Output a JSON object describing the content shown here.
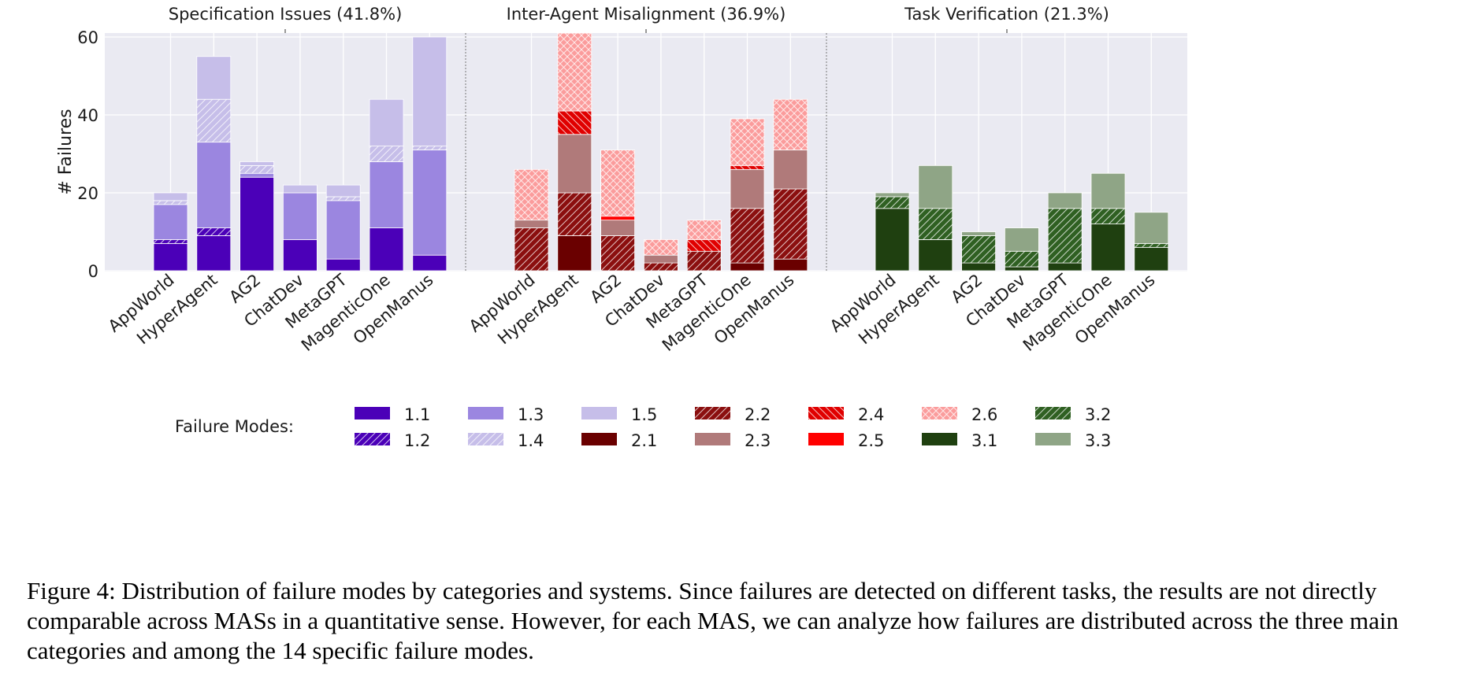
{
  "chart_data": {
    "type": "bar",
    "stacked": true,
    "ylabel": "# Failures",
    "ylim": [
      0,
      60
    ],
    "yticks": [
      0,
      20,
      40,
      60
    ],
    "grid": true,
    "systems": [
      "AppWorld",
      "HyperAgent",
      "AG2",
      "ChatDev",
      "MetaGPT",
      "MagenticOne",
      "OpenManus"
    ],
    "legend": {
      "title": "Failure Modes:",
      "position": "bottom",
      "entries": [
        {
          "label": "1.1",
          "color": "#4b00b8",
          "hatch": "none"
        },
        {
          "label": "1.2",
          "color": "#4b00b8",
          "hatch": "diag"
        },
        {
          "label": "1.3",
          "color": "#9b86e0",
          "hatch": "none"
        },
        {
          "label": "1.4",
          "color": "#c6bee9",
          "hatch": "diag"
        },
        {
          "label": "1.5",
          "color": "#c6bee9",
          "hatch": "none"
        },
        {
          "label": "2.1",
          "color": "#6a0000",
          "hatch": "none"
        },
        {
          "label": "2.2",
          "color": "#8b0f0f",
          "hatch": "diag"
        },
        {
          "label": "2.3",
          "color": "#b07a7a",
          "hatch": "none"
        },
        {
          "label": "2.4",
          "color": "#e00000",
          "hatch": "back"
        },
        {
          "label": "2.5",
          "color": "#ff0000",
          "hatch": "none"
        },
        {
          "label": "2.6",
          "color": "#fb9c9c",
          "hatch": "cross"
        },
        {
          "label": "3.1",
          "color": "#1f4010",
          "hatch": "none"
        },
        {
          "label": "3.2",
          "color": "#2f6022",
          "hatch": "diag"
        },
        {
          "label": "3.3",
          "color": "#8fa586",
          "hatch": "none"
        }
      ]
    },
    "panels": [
      {
        "title": "Specification Issues (41.8%)",
        "series": [
          {
            "name": "1.1",
            "values": [
              7,
              9,
              24,
              8,
              3,
              11,
              4
            ]
          },
          {
            "name": "1.2",
            "values": [
              1,
              2,
              0,
              0,
              0,
              0,
              0
            ]
          },
          {
            "name": "1.3",
            "values": [
              9,
              22,
              1,
              12,
              15,
              17,
              27
            ]
          },
          {
            "name": "1.4",
            "values": [
              1,
              11,
              2,
              0,
              1,
              4,
              1
            ]
          },
          {
            "name": "1.5",
            "values": [
              2,
              11,
              1,
              2,
              3,
              12,
              28
            ]
          }
        ]
      },
      {
        "title": "Inter-Agent Misalignment (36.9%)",
        "series": [
          {
            "name": "2.1",
            "values": [
              0,
              9,
              0,
              0,
              0,
              2,
              3
            ]
          },
          {
            "name": "2.2",
            "values": [
              11,
              11,
              9,
              2,
              5,
              14,
              18
            ]
          },
          {
            "name": "2.3",
            "values": [
              2,
              15,
              4,
              2,
              0,
              10,
              10
            ]
          },
          {
            "name": "2.4",
            "values": [
              0,
              6,
              0,
              0,
              3,
              1,
              0
            ]
          },
          {
            "name": "2.5",
            "values": [
              0,
              0,
              1,
              0,
              0,
              0,
              0
            ]
          },
          {
            "name": "2.6",
            "values": [
              13,
              20,
              17,
              4,
              5,
              12,
              13
            ]
          }
        ]
      },
      {
        "title": "Task Verification (21.3%)",
        "series": [
          {
            "name": "3.1",
            "values": [
              16,
              8,
              2,
              1,
              2,
              12,
              6
            ]
          },
          {
            "name": "3.2",
            "values": [
              3,
              8,
              7,
              4,
              14,
              4,
              1
            ]
          },
          {
            "name": "3.3",
            "values": [
              1,
              11,
              1,
              6,
              4,
              9,
              8
            ]
          }
        ]
      }
    ]
  },
  "caption": "Figure 4: Distribution of failure modes by categories and systems. Since failures are detected on different tasks, the results are not directly comparable across MASs in a quantitative sense. However, for each MAS, we can analyze how failures are distributed across the three main categories and among the 14 specific failure modes."
}
